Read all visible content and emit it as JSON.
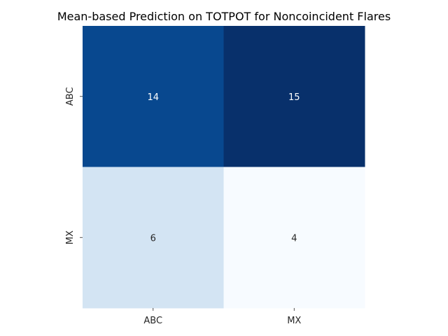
{
  "chart_data": {
    "type": "heatmap",
    "title": "Mean-based Prediction on TOTPOT for Noncoincident Flares",
    "xlabel": "",
    "ylabel": "",
    "x_categories": [
      "ABC",
      "MX"
    ],
    "y_categories": [
      "ABC",
      "MX"
    ],
    "values": [
      [
        14,
        15
      ],
      [
        6,
        4
      ]
    ],
    "colormap": "Blues",
    "colorbar": false,
    "color_range": [
      4,
      15
    ],
    "low_color": "#f7fbff",
    "high_color": "#08306b"
  }
}
